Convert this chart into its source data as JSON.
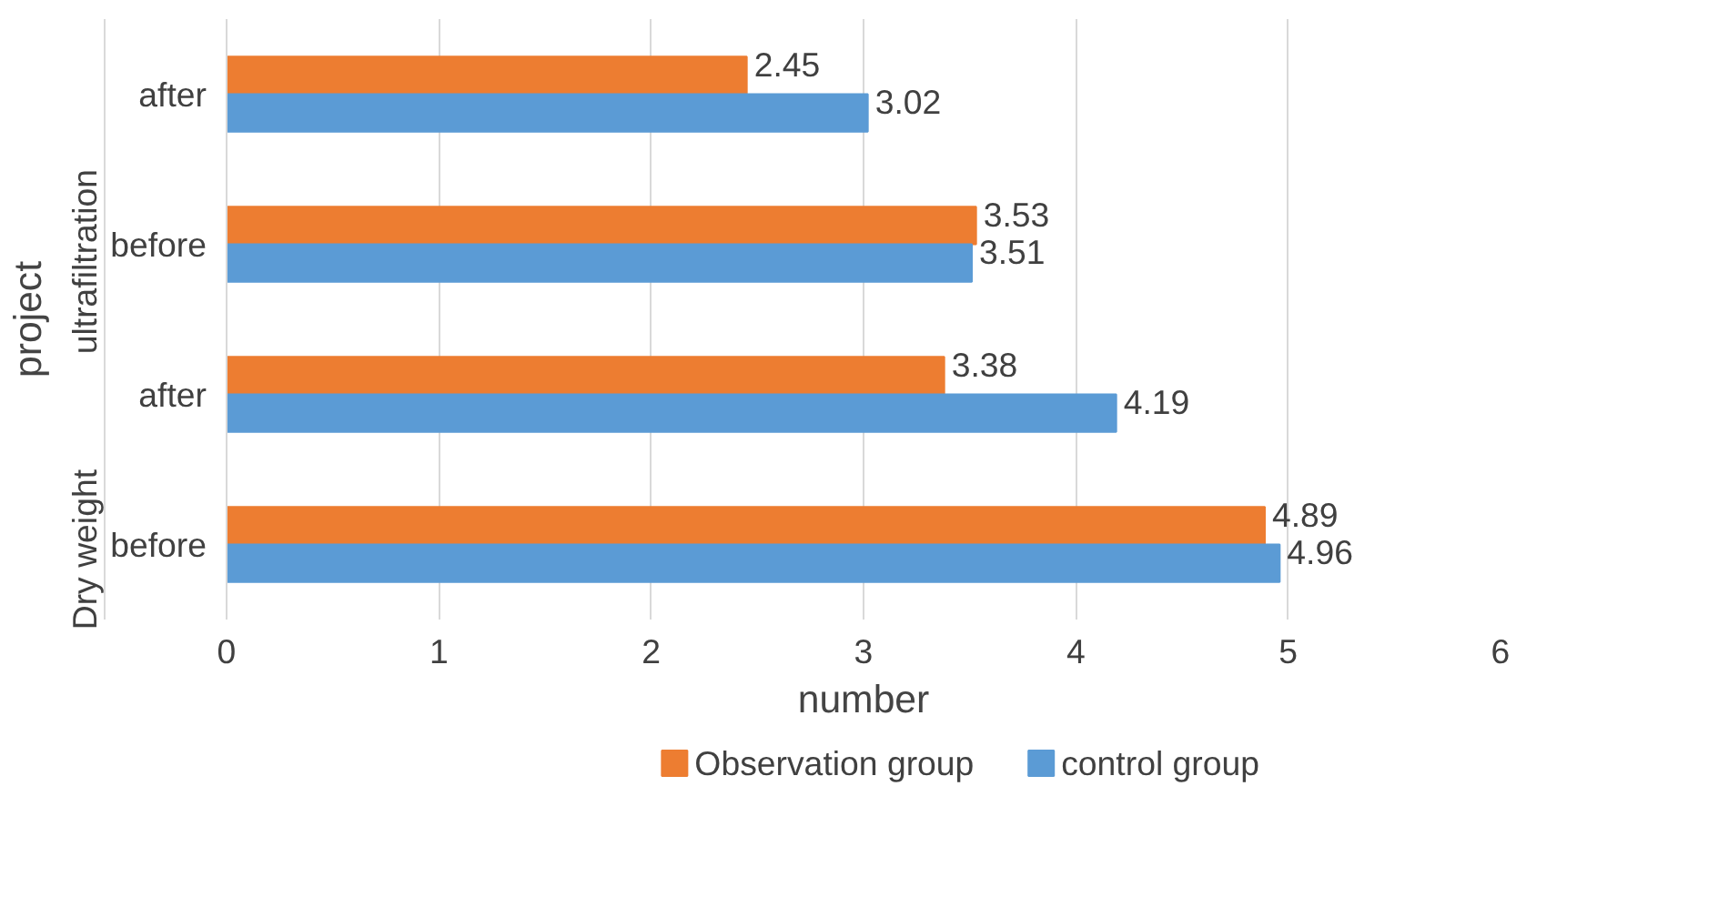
{
  "chart_data": {
    "type": "bar",
    "orientation": "horizontal",
    "xlabel": "number",
    "ylabel": "project",
    "categories": [
      "after",
      "before",
      "after",
      "before"
    ],
    "annotations": [
      "ultrafiltration",
      "Dry weight"
    ],
    "series": [
      {
        "name": "Observation group",
        "color": "#ed7d31",
        "values": [
          2.45,
          3.53,
          3.38,
          4.89
        ]
      },
      {
        "name": "control group",
        "color": "#5b9bd5",
        "values": [
          3.02,
          3.51,
          4.19,
          4.96
        ]
      }
    ],
    "xlim": [
      0,
      6
    ],
    "xticks": [
      0,
      1,
      2,
      3,
      4,
      5,
      6
    ],
    "grid": "x",
    "legend": "bottom",
    "data_labels": true
  }
}
